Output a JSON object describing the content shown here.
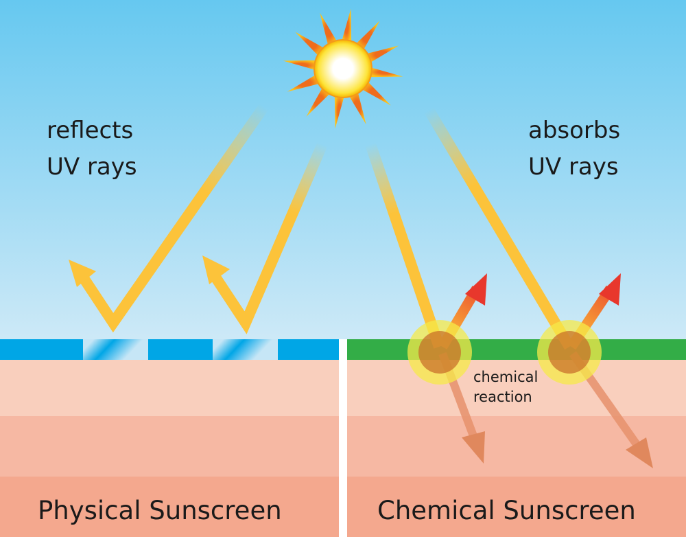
{
  "labels": {
    "left_caption_line1": "reflects",
    "left_caption_line2": "UV rays",
    "right_caption_line1": "absorbs",
    "right_caption_line2": "UV rays",
    "reaction_line1": "chemical",
    "reaction_line2": "reaction",
    "left_title": "Physical Sunscreen",
    "right_title": "Chemical Sunscreen"
  },
  "colors": {
    "sky_top": "#66c8f0",
    "sky_bottom": "#cde9f7",
    "physical_layer": "#00a6e6",
    "chemical_layer": "#33ad47",
    "uv_ray": "#fcc33a",
    "heat_ray": "#e8372c",
    "skin_1": "#f9cfbd",
    "skin_2": "#f6b8a3",
    "skin_3": "#f4a88e"
  },
  "icons": [
    "sun-icon"
  ]
}
